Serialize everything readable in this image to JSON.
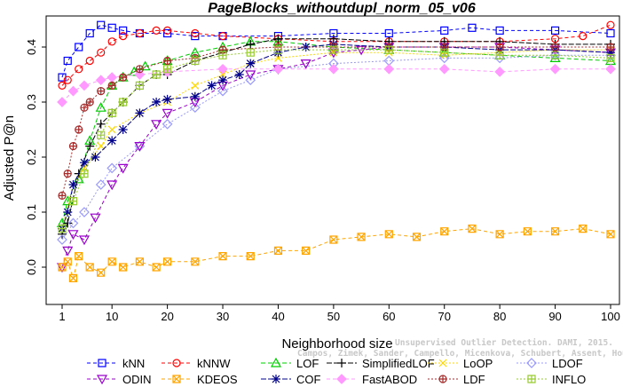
{
  "chart_data": {
    "type": "line",
    "title": "PageBlocks_withoutdupl_norm_05_v06",
    "xlabel": "Neighborhood size",
    "ylabel": "Adjusted P@n",
    "xlim": [
      1,
      100
    ],
    "ylim": [
      -0.05,
      0.45
    ],
    "xticks": [
      1,
      10,
      20,
      30,
      40,
      50,
      60,
      70,
      80,
      90,
      100
    ],
    "yticks": [
      0.0,
      0.1,
      0.2,
      0.3,
      0.4
    ],
    "ytick_labels": [
      "0.0",
      "0.1",
      "0.2",
      "0.3",
      "0.4"
    ],
    "legend_position": "bottom",
    "series": [
      {
        "name": "kNN",
        "color": "#0000ff",
        "marker": "square",
        "dash": "4,3",
        "points": [
          [
            1,
            0.345
          ],
          [
            2,
            0.375
          ],
          [
            4,
            0.4
          ],
          [
            6,
            0.425
          ],
          [
            8,
            0.44
          ],
          [
            10,
            0.435
          ],
          [
            12,
            0.43
          ],
          [
            15,
            0.425
          ],
          [
            20,
            0.425
          ],
          [
            25,
            0.42
          ],
          [
            30,
            0.42
          ],
          [
            40,
            0.42
          ],
          [
            50,
            0.425
          ],
          [
            60,
            0.425
          ],
          [
            70,
            0.43
          ],
          [
            75,
            0.435
          ],
          [
            80,
            0.43
          ],
          [
            90,
            0.43
          ],
          [
            100,
            0.425
          ]
        ]
      },
      {
        "name": "kNNW",
        "color": "#ff0000",
        "marker": "circle",
        "dash": "4,3",
        "points": [
          [
            1,
            0.33
          ],
          [
            2,
            0.34
          ],
          [
            4,
            0.36
          ],
          [
            6,
            0.375
          ],
          [
            8,
            0.39
          ],
          [
            10,
            0.41
          ],
          [
            12,
            0.42
          ],
          [
            15,
            0.425
          ],
          [
            18,
            0.43
          ],
          [
            20,
            0.43
          ],
          [
            25,
            0.425
          ],
          [
            30,
            0.42
          ],
          [
            40,
            0.415
          ],
          [
            50,
            0.41
          ],
          [
            60,
            0.41
          ],
          [
            70,
            0.41
          ],
          [
            80,
            0.41
          ],
          [
            90,
            0.415
          ],
          [
            95,
            0.42
          ],
          [
            100,
            0.44
          ]
        ]
      },
      {
        "name": "LOF",
        "color": "#00cc00",
        "marker": "triangle-up",
        "dash": "5,3",
        "points": [
          [
            1,
            0.08
          ],
          [
            2,
            0.12
          ],
          [
            4,
            0.16
          ],
          [
            6,
            0.23
          ],
          [
            8,
            0.29
          ],
          [
            10,
            0.33
          ],
          [
            12,
            0.345
          ],
          [
            14,
            0.355
          ],
          [
            16,
            0.365
          ],
          [
            20,
            0.375
          ],
          [
            25,
            0.39
          ],
          [
            30,
            0.4
          ],
          [
            35,
            0.41
          ],
          [
            40,
            0.41
          ],
          [
            50,
            0.4
          ],
          [
            60,
            0.395
          ],
          [
            70,
            0.39
          ],
          [
            80,
            0.385
          ],
          [
            90,
            0.38
          ],
          [
            100,
            0.375
          ]
        ]
      },
      {
        "name": "SimplifiedLOF",
        "color": "#000000",
        "marker": "plus",
        "dash": "6,2",
        "points": [
          [
            1,
            0.06
          ],
          [
            2,
            0.08
          ],
          [
            4,
            0.17
          ],
          [
            6,
            0.22
          ],
          [
            8,
            0.26
          ],
          [
            10,
            0.28
          ],
          [
            12,
            0.3
          ],
          [
            15,
            0.33
          ],
          [
            18,
            0.35
          ],
          [
            20,
            0.35
          ],
          [
            25,
            0.375
          ],
          [
            30,
            0.39
          ],
          [
            35,
            0.405
          ],
          [
            40,
            0.415
          ],
          [
            50,
            0.415
          ],
          [
            60,
            0.41
          ],
          [
            70,
            0.41
          ],
          [
            80,
            0.41
          ],
          [
            90,
            0.405
          ],
          [
            100,
            0.405
          ]
        ]
      },
      {
        "name": "LoOP",
        "color": "#ffd700",
        "marker": "x",
        "dash": "2,2",
        "points": [
          [
            1,
            0.07
          ],
          [
            3,
            0.15
          ],
          [
            5,
            0.18
          ],
          [
            8,
            0.22
          ],
          [
            10,
            0.25
          ],
          [
            15,
            0.28
          ],
          [
            20,
            0.3
          ],
          [
            25,
            0.33
          ],
          [
            30,
            0.35
          ],
          [
            35,
            0.37
          ],
          [
            40,
            0.38
          ],
          [
            50,
            0.39
          ],
          [
            60,
            0.39
          ],
          [
            70,
            0.385
          ],
          [
            80,
            0.39
          ],
          [
            90,
            0.395
          ],
          [
            100,
            0.395
          ]
        ]
      },
      {
        "name": "LDOF",
        "color": "#9999ff",
        "marker": "diamond",
        "dash": "2,2",
        "points": [
          [
            1,
            0.05
          ],
          [
            3,
            0.08
          ],
          [
            5,
            0.1
          ],
          [
            8,
            0.15
          ],
          [
            10,
            0.18
          ],
          [
            15,
            0.22
          ],
          [
            20,
            0.26
          ],
          [
            25,
            0.29
          ],
          [
            30,
            0.32
          ],
          [
            35,
            0.34
          ],
          [
            40,
            0.36
          ],
          [
            50,
            0.37
          ],
          [
            60,
            0.375
          ],
          [
            70,
            0.38
          ],
          [
            80,
            0.38
          ],
          [
            90,
            0.385
          ],
          [
            100,
            0.385
          ]
        ]
      },
      {
        "name": "ODIN",
        "color": "#9900cc",
        "marker": "triangle-down",
        "dash": "4,3",
        "points": [
          [
            1,
            0.0
          ],
          [
            2,
            0.03
          ],
          [
            3,
            0.06
          ],
          [
            5,
            0.05
          ],
          [
            7,
            0.09
          ],
          [
            10,
            0.15
          ],
          [
            12,
            0.18
          ],
          [
            15,
            0.22
          ],
          [
            18,
            0.26
          ],
          [
            20,
            0.28
          ],
          [
            25,
            0.3
          ],
          [
            30,
            0.33
          ],
          [
            35,
            0.35
          ],
          [
            40,
            0.36
          ],
          [
            45,
            0.37
          ],
          [
            50,
            0.39
          ],
          [
            55,
            0.395
          ],
          [
            60,
            0.4
          ],
          [
            70,
            0.4
          ],
          [
            80,
            0.4
          ],
          [
            90,
            0.395
          ],
          [
            100,
            0.39
          ]
        ]
      },
      {
        "name": "KDEOS",
        "color": "#ffa500",
        "marker": "square-x",
        "dash": "4,3",
        "points": [
          [
            1,
            0.0
          ],
          [
            2,
            0.01
          ],
          [
            3,
            -0.02
          ],
          [
            4,
            0.02
          ],
          [
            6,
            0.0
          ],
          [
            8,
            -0.01
          ],
          [
            10,
            0.01
          ],
          [
            12,
            0.0
          ],
          [
            15,
            0.01
          ],
          [
            18,
            0.0
          ],
          [
            20,
            0.01
          ],
          [
            25,
            0.01
          ],
          [
            30,
            0.02
          ],
          [
            35,
            0.02
          ],
          [
            40,
            0.03
          ],
          [
            45,
            0.03
          ],
          [
            50,
            0.05
          ],
          [
            55,
            0.055
          ],
          [
            60,
            0.06
          ],
          [
            65,
            0.055
          ],
          [
            70,
            0.065
          ],
          [
            75,
            0.07
          ],
          [
            80,
            0.06
          ],
          [
            85,
            0.065
          ],
          [
            90,
            0.065
          ],
          [
            95,
            0.07
          ],
          [
            100,
            0.06
          ]
        ]
      },
      {
        "name": "COF",
        "color": "#00008b",
        "marker": "star",
        "dash": "6,2",
        "points": [
          [
            1,
            0.07
          ],
          [
            2,
            0.1
          ],
          [
            3,
            0.15
          ],
          [
            5,
            0.19
          ],
          [
            7,
            0.2
          ],
          [
            10,
            0.23
          ],
          [
            12,
            0.25
          ],
          [
            15,
            0.28
          ],
          [
            18,
            0.3
          ],
          [
            20,
            0.305
          ],
          [
            25,
            0.31
          ],
          [
            28,
            0.33
          ],
          [
            30,
            0.34
          ],
          [
            33,
            0.35
          ],
          [
            35,
            0.37
          ],
          [
            40,
            0.39
          ],
          [
            45,
            0.4
          ],
          [
            50,
            0.405
          ],
          [
            60,
            0.4
          ],
          [
            70,
            0.4
          ],
          [
            80,
            0.395
          ],
          [
            90,
            0.395
          ],
          [
            100,
            0.39
          ]
        ]
      },
      {
        "name": "FastABOD",
        "color": "#ff99ff",
        "marker": "diamond-filled",
        "dash": "4,3",
        "points": [
          [
            1,
            0.3
          ],
          [
            3,
            0.32
          ],
          [
            5,
            0.33
          ],
          [
            8,
            0.34
          ],
          [
            10,
            0.345
          ],
          [
            15,
            0.35
          ],
          [
            20,
            0.355
          ],
          [
            30,
            0.36
          ],
          [
            40,
            0.36
          ],
          [
            50,
            0.36
          ],
          [
            60,
            0.36
          ],
          [
            70,
            0.36
          ],
          [
            80,
            0.355
          ],
          [
            90,
            0.36
          ],
          [
            100,
            0.36
          ]
        ]
      },
      {
        "name": "LDF",
        "color": "#a52a2a",
        "marker": "circle-plus",
        "dash": "2,2",
        "points": [
          [
            1,
            0.13
          ],
          [
            2,
            0.17
          ],
          [
            3,
            0.22
          ],
          [
            4,
            0.25
          ],
          [
            5,
            0.29
          ],
          [
            6,
            0.3
          ],
          [
            8,
            0.32
          ],
          [
            10,
            0.33
          ],
          [
            12,
            0.345
          ],
          [
            15,
            0.36
          ],
          [
            20,
            0.375
          ],
          [
            25,
            0.38
          ],
          [
            30,
            0.395
          ],
          [
            40,
            0.4
          ],
          [
            50,
            0.4
          ],
          [
            60,
            0.4
          ],
          [
            70,
            0.4
          ],
          [
            80,
            0.4
          ],
          [
            90,
            0.4
          ],
          [
            100,
            0.4
          ]
        ]
      },
      {
        "name": "INFLO",
        "color": "#99cc33",
        "marker": "square-cross",
        "dash": "2,2",
        "points": [
          [
            1,
            0.07
          ],
          [
            3,
            0.12
          ],
          [
            5,
            0.17
          ],
          [
            8,
            0.24
          ],
          [
            10,
            0.28
          ],
          [
            12,
            0.3
          ],
          [
            15,
            0.33
          ],
          [
            18,
            0.35
          ],
          [
            20,
            0.36
          ],
          [
            25,
            0.375
          ],
          [
            30,
            0.385
          ],
          [
            35,
            0.39
          ],
          [
            40,
            0.395
          ],
          [
            50,
            0.395
          ],
          [
            60,
            0.395
          ],
          [
            70,
            0.39
          ],
          [
            80,
            0.385
          ],
          [
            90,
            0.385
          ],
          [
            100,
            0.38
          ]
        ]
      }
    ],
    "legend_layout": [
      [
        "kNN",
        "kNNW",
        "LOF",
        "SimplifiedLOF",
        "LoOP",
        "LDOF"
      ],
      [
        "ODIN",
        "KDEOS",
        "COF",
        "FastABOD",
        "LDF",
        "INFLO"
      ]
    ]
  },
  "watermark_line1": "Unsupervised Outlier Detection. DAMI, 2015.",
  "watermark_line2": "Campos, Zimek, Sander, Campello, Micenkova, Schubert, Assent, Houle"
}
